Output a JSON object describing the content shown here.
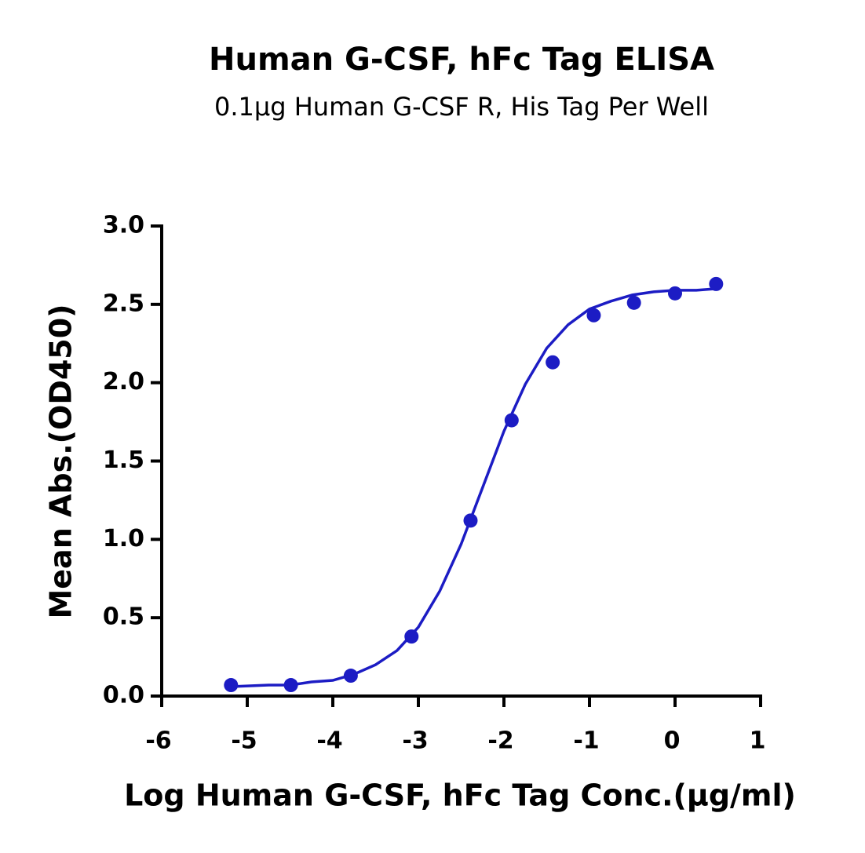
{
  "chart_data": {
    "type": "scatter",
    "title": "Human G-CSF, hFc Tag ELISA",
    "subtitle": "0.1μg Human G-CSF R, His Tag Per Well",
    "x_label": "Log Human G-CSF, hFc Tag Conc.(μg/ml)",
    "y_label": "Mean Abs.(OD450)",
    "xlim": [
      -6,
      1
    ],
    "ylim": [
      0,
      3
    ],
    "xticks": [
      -6,
      -5,
      -4,
      -3,
      -2,
      -1,
      0,
      1
    ],
    "yticks": [
      {
        "value": 0,
        "label": "0.0"
      },
      0.5,
      {
        "value": 1,
        "label": "1.0"
      },
      1.5,
      {
        "value": 2,
        "label": "2.0"
      },
      2.5,
      {
        "value": 3,
        "label": "3.0"
      }
    ],
    "series": [
      {
        "type": "scatter",
        "color": "#1c1cc4",
        "x": [
          -5.19,
          -4.49,
          -3.79,
          -3.08,
          -2.39,
          -1.91,
          -1.43,
          -0.95,
          -0.48,
          0,
          0.48
        ],
        "values": [
          0.07,
          0.07,
          0.13,
          0.38,
          1.12,
          1.76,
          2.13,
          2.43,
          2.51,
          2.57,
          2.63
        ]
      },
      {
        "type": "line",
        "color": "#1c1cc4",
        "x": [
          -5.19,
          -4.75,
          -4.5,
          -4.25,
          -4,
          -3.75,
          -3.5,
          -3.25,
          -3,
          -2.75,
          -2.5,
          -2.25,
          -2,
          -1.75,
          -1.5,
          -1.25,
          -1,
          -0.75,
          -0.5,
          -0.25,
          0,
          0.25,
          0.48
        ],
        "values": [
          0.06,
          0.07,
          0.07,
          0.09,
          0.1,
          0.14,
          0.2,
          0.29,
          0.44,
          0.67,
          0.97,
          1.33,
          1.69,
          1.99,
          2.22,
          2.37,
          2.47,
          2.52,
          2.56,
          2.58,
          2.59,
          2.59,
          2.6
        ]
      }
    ]
  }
}
